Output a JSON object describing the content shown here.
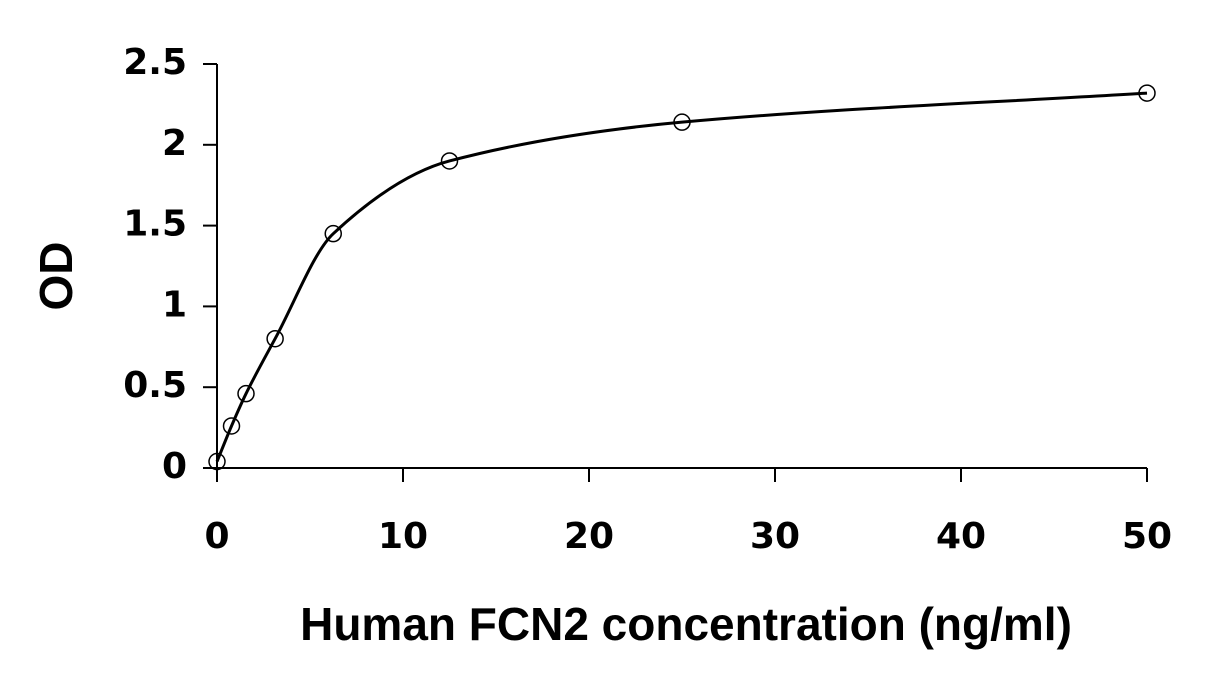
{
  "chart_data": {
    "type": "scatter",
    "x_label": "Human FCN2 concentration (ng/ml)",
    "y_label": "OD",
    "x": [
      0,
      0.78,
      1.56,
      3.125,
      6.25,
      12.5,
      25,
      50
    ],
    "values": [
      0.04,
      0.26,
      0.46,
      0.8,
      1.45,
      1.9,
      2.14,
      2.32
    ],
    "color": "#000000",
    "trendline": true,
    "xlim": [
      0,
      50
    ],
    "xticks": [
      0,
      10,
      20,
      30,
      40,
      50
    ],
    "ylim": [
      0,
      2.5
    ],
    "yticks": [
      0,
      0.5,
      1,
      1.5,
      2,
      2.5
    ]
  }
}
